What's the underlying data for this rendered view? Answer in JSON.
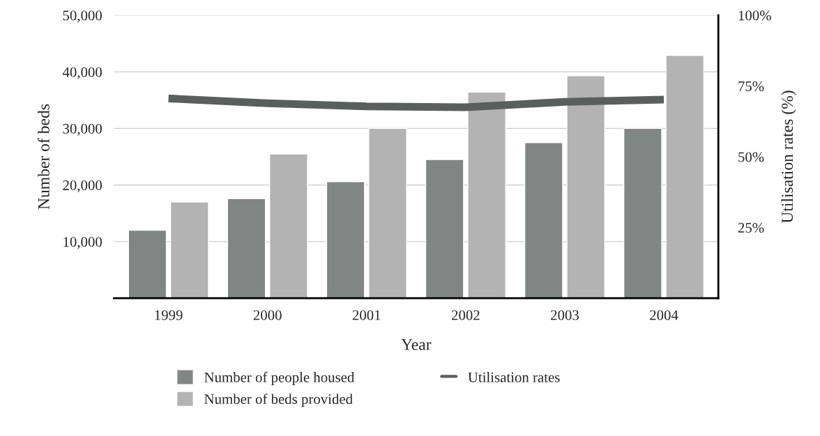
{
  "chart_data": {
    "type": "bar",
    "xlabel": "Year",
    "ylabel": "Number of beds",
    "y2label": "Utilisation rates (%)",
    "categories": [
      "1999",
      "2000",
      "2001",
      "2002",
      "2003",
      "2004"
    ],
    "series": [
      {
        "name": "Number of people housed",
        "color": "#808683",
        "values": [
          12000,
          17600,
          20600,
          24500,
          27500,
          30000
        ]
      },
      {
        "name": "Number of beds provided",
        "color": "#b3b3b3",
        "values": [
          17000,
          25500,
          30000,
          36400,
          39300,
          42900
        ]
      },
      {
        "name": "Utilisation rates",
        "type": "line",
        "axis": "y2",
        "color": "#5a5f5d",
        "values": [
          70.6,
          68.9,
          67.8,
          67.5,
          69.4,
          70.2
        ]
      }
    ],
    "ylim": [
      0,
      50000
    ],
    "yticks": [
      {
        "value": 10000,
        "label": "10,000"
      },
      {
        "value": 20000,
        "label": "20,000"
      },
      {
        "value": 30000,
        "label": "30,000"
      },
      {
        "value": 40000,
        "label": "40,000"
      },
      {
        "value": 50000,
        "label": "50,000"
      }
    ],
    "y2lim": [
      0,
      100
    ],
    "y2ticks": [
      {
        "value": 25,
        "label": "25%"
      },
      {
        "value": 50,
        "label": "50%"
      },
      {
        "value": 75,
        "label": "75%"
      },
      {
        "value": 100,
        "label": "100%"
      }
    ],
    "grid": "y",
    "legend": "bottom",
    "marker": "none",
    "line_style": "solid"
  }
}
